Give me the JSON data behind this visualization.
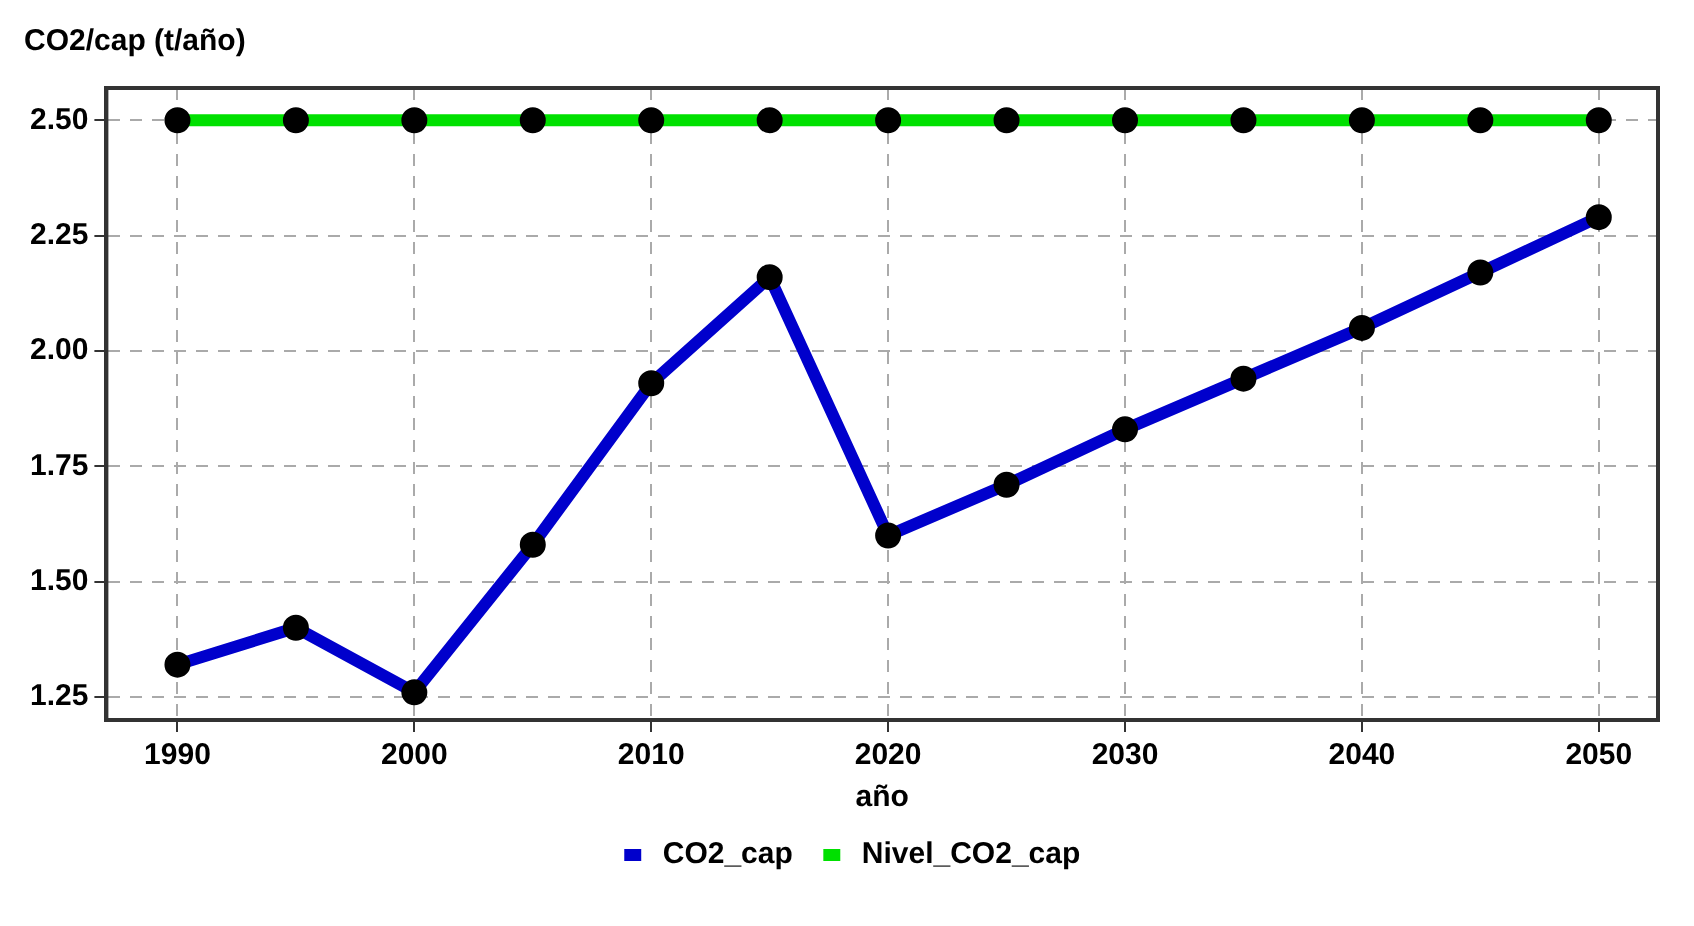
{
  "chart_data": {
    "type": "line",
    "ylabel": "CO2/cap (t/año)",
    "xlabel": "año",
    "x": [
      1990,
      1995,
      2000,
      2005,
      2010,
      2015,
      2020,
      2025,
      2030,
      2035,
      2040,
      2045,
      2050
    ],
    "series": [
      {
        "name": "CO2_cap",
        "color": "#0000cc",
        "values": [
          1.32,
          1.4,
          1.26,
          1.58,
          1.93,
          2.16,
          1.6,
          1.71,
          1.83,
          1.94,
          2.05,
          2.17,
          2.29
        ]
      },
      {
        "name": "Nivel_CO2_cap",
        "color": "#00e000",
        "values": [
          2.5,
          2.5,
          2.5,
          2.5,
          2.5,
          2.5,
          2.5,
          2.5,
          2.5,
          2.5,
          2.5,
          2.5,
          2.5
        ]
      }
    ],
    "xlim": [
      1987,
      2052.5
    ],
    "xticks": [
      1990,
      2000,
      2010,
      2020,
      2030,
      2040,
      2050
    ],
    "ylim": [
      1.2,
      2.57
    ],
    "yticks": [
      1.25,
      {
        "value": 1.5,
        "label": "1.50"
      },
      1.75,
      {
        "value": 2,
        "label": "2.00"
      },
      2.25,
      {
        "value": 2.5,
        "label": "2.50"
      }
    ],
    "grid": true,
    "legend": "bottom",
    "marker": "circle",
    "line_style": "solid"
  }
}
